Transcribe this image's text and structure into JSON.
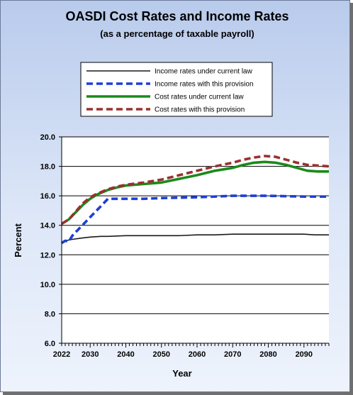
{
  "chart_data": {
    "type": "line",
    "title": "OASDI Cost Rates and Income Rates",
    "subtitle": "(as a percentage of taxable payroll)",
    "xlabel": "Year",
    "ylabel": "Percent",
    "xlim": [
      2022,
      2097
    ],
    "ylim": [
      6.0,
      20.0
    ],
    "x_ticks": [
      "2022",
      "2030",
      "2040",
      "2050",
      "2060",
      "2070",
      "2080",
      "2090"
    ],
    "y_ticks": [
      "6.0",
      "8.0",
      "10.0",
      "12.0",
      "14.0",
      "16.0",
      "18.0",
      "20.0"
    ],
    "grid": true,
    "legend_position": "top",
    "series": [
      {
        "name": "Income rates under current law",
        "color": "#1a1a1a",
        "style": "solid-thin",
        "x": [
          2022,
          2023,
          2024,
          2025,
          2028,
          2030,
          2033,
          2035,
          2040,
          2045,
          2050,
          2055,
          2060,
          2065,
          2070,
          2075,
          2080,
          2085,
          2090,
          2093,
          2097
        ],
        "y": [
          12.85,
          12.95,
          13.0,
          13.05,
          13.15,
          13.2,
          13.25,
          13.25,
          13.3,
          13.3,
          13.3,
          13.3,
          13.35,
          13.35,
          13.4,
          13.4,
          13.4,
          13.4,
          13.4,
          13.35,
          13.35
        ]
      },
      {
        "name": "Income rates with this provision",
        "color": "#1c3fd6",
        "style": "dashed-thick",
        "x": [
          2022,
          2023,
          2024,
          2025,
          2027,
          2029,
          2031,
          2033,
          2035,
          2037,
          2040,
          2045,
          2050,
          2060,
          2070,
          2080,
          2090,
          2097
        ],
        "y": [
          12.8,
          12.95,
          12.9,
          13.3,
          13.8,
          14.3,
          14.8,
          15.3,
          15.8,
          15.8,
          15.8,
          15.8,
          15.85,
          15.9,
          16.0,
          16.0,
          15.95,
          15.95
        ]
      },
      {
        "name": "Cost rates under current law",
        "color": "#1a8a1a",
        "style": "solid-thick",
        "x": [
          2022,
          2024,
          2026,
          2028,
          2030,
          2032,
          2035,
          2038,
          2040,
          2045,
          2050,
          2055,
          2060,
          2065,
          2070,
          2073,
          2076,
          2079,
          2082,
          2085,
          2088,
          2091,
          2094,
          2097
        ],
        "y": [
          14.1,
          14.4,
          14.9,
          15.4,
          15.8,
          16.1,
          16.4,
          16.6,
          16.7,
          16.8,
          16.9,
          17.15,
          17.4,
          17.7,
          17.9,
          18.1,
          18.25,
          18.3,
          18.25,
          18.1,
          17.9,
          17.7,
          17.65,
          17.65
        ]
      },
      {
        "name": "Cost rates with this provision",
        "color": "#9a3030",
        "style": "dashed-thick",
        "x": [
          2022,
          2024,
          2026,
          2028,
          2030,
          2032,
          2035,
          2038,
          2040,
          2045,
          2050,
          2055,
          2060,
          2065,
          2070,
          2073,
          2076,
          2079,
          2082,
          2085,
          2088,
          2091,
          2094,
          2097
        ],
        "y": [
          14.1,
          14.4,
          14.95,
          15.5,
          15.9,
          16.15,
          16.45,
          16.65,
          16.75,
          16.9,
          17.1,
          17.4,
          17.7,
          18.0,
          18.25,
          18.45,
          18.6,
          18.7,
          18.65,
          18.45,
          18.25,
          18.1,
          18.05,
          18.0
        ]
      }
    ]
  }
}
